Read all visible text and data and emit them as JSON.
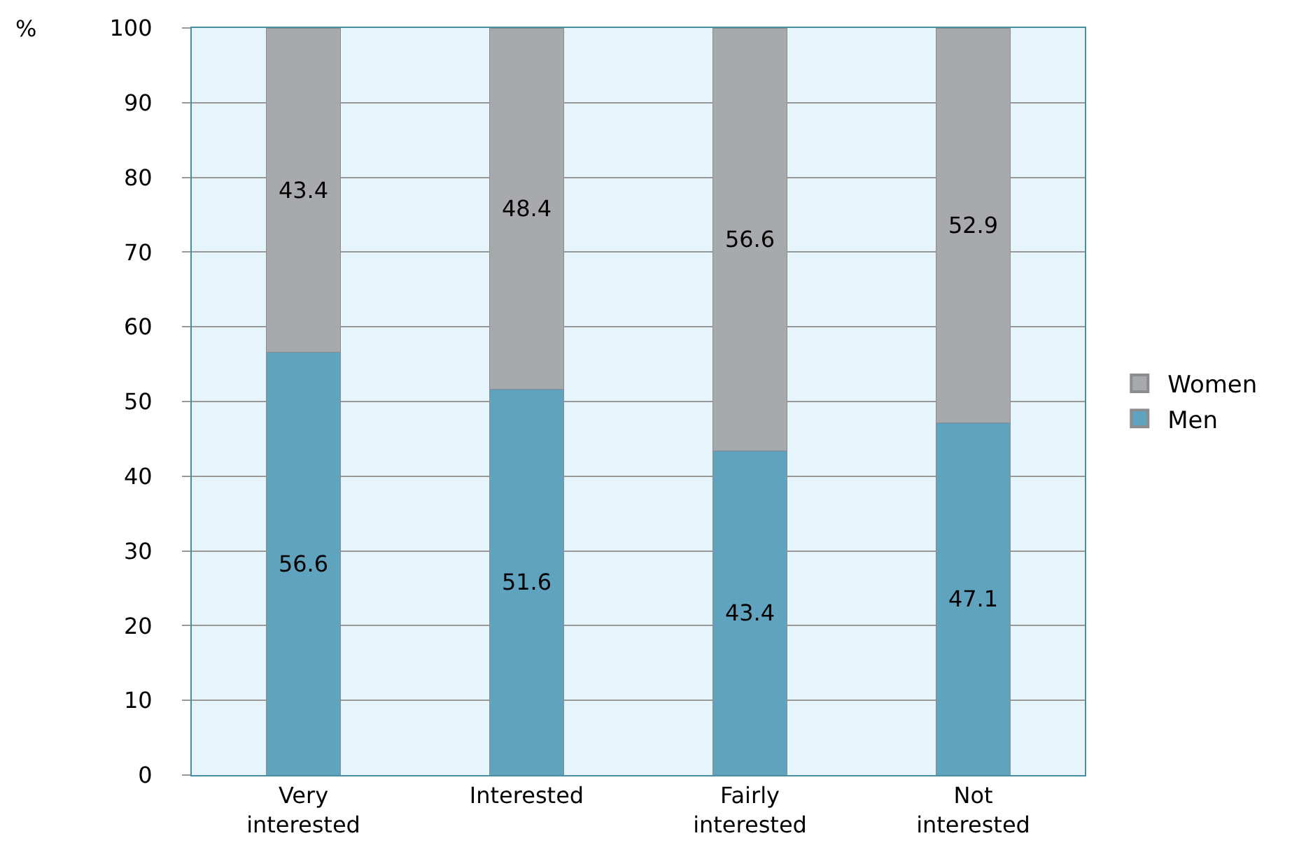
{
  "chart_data": {
    "type": "bar",
    "stacked": true,
    "ylabel": "%",
    "categories": [
      "Very interested",
      "Interested",
      "Fairly interested",
      "Not interested"
    ],
    "series": [
      {
        "name": "Men",
        "color": "#5fa3bf",
        "values": [
          56.6,
          51.6,
          43.4,
          47.1
        ]
      },
      {
        "name": "Women",
        "color": "#a7a9ac",
        "values": [
          43.4,
          48.4,
          56.6,
          52.9
        ]
      }
    ],
    "ylim": [
      0,
      100
    ],
    "yticks": [
      0,
      10,
      20,
      30,
      40,
      50,
      60,
      70,
      80,
      90,
      100
    ],
    "grid": "y",
    "legend": "right",
    "data_labels": true
  }
}
